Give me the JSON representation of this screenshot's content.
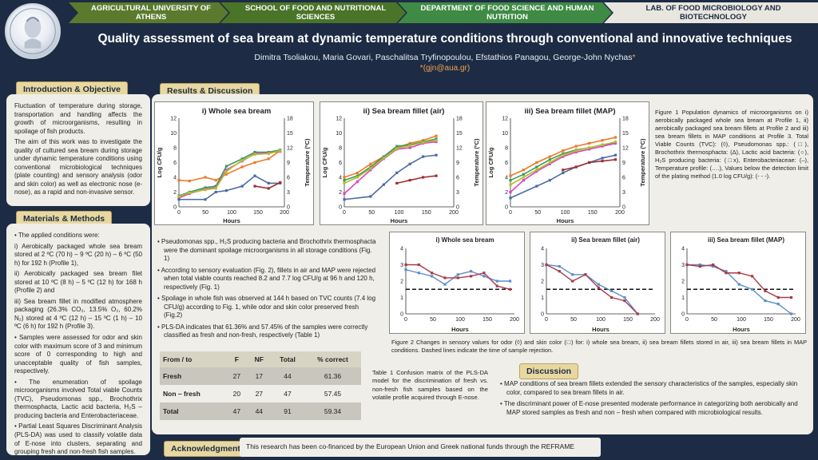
{
  "header": {
    "crumbs": [
      "AGRICULTURAL UNIVERSITY OF ATHENS",
      "SCHOOL OF FOOD AND NUTRITIONAL SCIENCES",
      "DEPARTMENT OF FOOD SCIENCE AND HUMAN NUTRITION",
      "LAB. OF FOOD MICROBIOLOGY AND BIOTECHNOLOGY"
    ],
    "title": "Quality assessment of sea bream at dynamic temperature conditions through conventional and innovative techniques",
    "authors": "Dimitra Tsoliakou, Maria Govari, Paschalitsa Tryfinopoulou, Efstathios Panagou, George-John Nychas",
    "author_mark": "*",
    "email": "*(gjn@aua.gr)"
  },
  "sections": {
    "intro": "Introduction & Objective",
    "methods": "Materials & Methods",
    "results": "Results & Discussion",
    "discussion": "Discussion",
    "ack": "Acknowledgments"
  },
  "intro": {
    "p1": "Fluctuation of temperature during storage, transportation and handling affects the growth of microorganisms, resulting in spoilage of fish products.",
    "p2": "The aim of this work was to investigate the quality of cultured sea bream during storage under dynamic temperature conditions using conventional microbiological techniques (plate counting) and sensory analysis (odor and skin color) as well as electronic nose (e-nose), as a rapid and non-invasive sensor."
  },
  "methods": {
    "p0": "• The applied conditions were:",
    "p1": "i) Aerobically packaged whole sea bream stored at 2 ºC (70 h) – 9 ºC (20 h) – 6 ºC (50 h) for 192 h (Profile 1),",
    "p2": "ii) Aerobically packaged sea bream filet stored at 10 ºC (8 h) – 5 ºC (12 h) for 168 h (Profile 2) and",
    "p3": "iii) Sea bream fillet in modified atmosphere packaging (26.3% CO₂, 13.5% O₂, 60.2% N₂) stored at 4 ºC (12 h) – 15 ºC (1 h) – 10 ºC (6 h) for 192 h (Profile 3).",
    "p4": "• Samples were assessed for odor and skin color with maximum score of 3 and minimum score of 0 corresponding to high and unacceptable quality of fish samples, respectively.",
    "p5": "• The enumeration of spoilage microorganisms involved Total viable Counts (TVC), Pseudomonas spp., Brochothrix thermosphacta, Lactic acid bacteria, H₂S – producing bacteria and Enterobacteriaceae.",
    "p6": "• Partial Least Squares Discriminant Analysis (PLS-DA) was used to classify volatile data of E-nose into clusters, separating and grouping fresh and non-fresh fish samples."
  },
  "fig1_titles": [
    "i)  Whole sea bream",
    "ii)  Sea bream fillet (air)",
    "iii)  Sea bream fillet (MAP)"
  ],
  "fig1_axes": {
    "xlabel": "Hours",
    "ylabel": "Log CFU/g",
    "y2label": "Temperature (ºC)",
    "xticks": [
      "0",
      "50",
      "100",
      "150",
      "200"
    ],
    "yticks": [
      "0",
      "2",
      "4",
      "6",
      "8",
      "10",
      "12"
    ],
    "y2ticks": [
      "0",
      "3",
      "6",
      "9",
      "12",
      "15",
      "18"
    ]
  },
  "fig1_caption": "Figure 1 Population dynamics of microorganisms on i) aerobically packaged whole sea bream at Profile 1, ii) aerobically packaged sea bream fillets at Profile 2 and iii) sea bream fillets in MAP conditions at Profile 3. Total Viable Counts (TVC): (◊), Pseudomonas spp.: (□), Brochothrix thermosphacta: (Δ), Lactic acid bacteria: (○), H₂S producing bacteria: (□x), Enterobacteriaceae: (–), Temperature profile: (….), Values below the detection limit of the plating method (1.0 log CFU/g): (- - -).",
  "fig2_titles": [
    "i)  Whole sea bream",
    "ii)  Sea bream fillet (air)",
    "iii)  Sea bream fillet (MAP)"
  ],
  "fig2_axes": {
    "xlabel": "Hours",
    "xticks": [
      "0",
      "50",
      "100",
      "150",
      "200"
    ],
    "yticks": [
      "0",
      "1",
      "2",
      "3",
      "4"
    ]
  },
  "fig2_caption": "Figure 2 Changes in sensory values for odor (◊) and skin color (□) for: i) whole sea bream, ii) sea bream fillets stored in air, iii) sea bream fillets in MAP conditions. Dashed lines indicate the time of sample rejection.",
  "results_bullets": [
    "Pseudomonas spp., H₂S producing bacteria and Brochothrix thermosphacta were the dominant spoilage microorganisms in all storage conditions (Fig. 1)",
    "According to sensory evaluation (Fig. 2), fillets in air and MAP were rejected when total viable counts reached 8.2 and 7.7 log CFU/g at 96 h and 120 h, respectively (Fig. 1)",
    "Spoilage in whole fish was observed at 144 h based on TVC counts (7.4 log CFU/g) according to Fig. 1, while odor and skin color preserved fresh (Fig.2)",
    "PLS-DA indicates that 61.36% and 57.45% of the samples were correctly classified as fresh and non-fresh, respectively (Table 1)"
  ],
  "table": {
    "headers": [
      "From / to",
      "F",
      "NF",
      "Total",
      "% correct"
    ],
    "rows": [
      [
        "Fresh",
        "27",
        "17",
        "44",
        "61.36"
      ],
      [
        "Non – fresh",
        "20",
        "27",
        "47",
        "57.45"
      ],
      [
        "Total",
        "47",
        "44",
        "91",
        "59.34"
      ]
    ]
  },
  "table_caption": "Table 1 Confusion matrix of the PLS-DA model for the discrimination of fresh vs. non-fresh fish samples based on the volatile profile acquired through E-nose.",
  "discussion_bullets": [
    "MAP conditions of sea bream fillets extended the sensory characteristics of the samples, especially skin color, compared to sea bream fillets in air.",
    "The discriminant power of E-nose presented moderate performance in categorizing both aerobically and MAP stored samples as fresh and non – fresh when compared with microbiological results."
  ],
  "ack_text": "This research has been co-financed by the European Union and Greek national funds through the REFRAME",
  "chart_data": [
    {
      "type": "line",
      "title": "i)  Whole sea bream",
      "xlabel": "Hours",
      "ylabel": "Log CFU/g",
      "y2label": "Temperature (ºC)",
      "xlim": [
        0,
        200
      ],
      "ylim": [
        0,
        12
      ],
      "y2lim": [
        0,
        18
      ],
      "series": [
        {
          "color": "#f07828",
          "x": [
            0,
            20,
            50,
            70,
            90,
            120,
            144,
            170,
            192
          ],
          "y": [
            3.6,
            3.5,
            4.0,
            3.6,
            4.4,
            5.4,
            6.0,
            6.5,
            7.6
          ]
        },
        {
          "color": "#3a9a5a",
          "x": [
            0,
            20,
            50,
            70,
            90,
            120,
            144,
            170,
            192
          ],
          "y": [
            1.5,
            2.0,
            2.6,
            2.8,
            5.5,
            6.5,
            7.4,
            7.4,
            7.7
          ]
        },
        {
          "color": "#e040c0",
          "x": [
            0,
            20,
            50,
            70,
            90,
            120,
            144,
            170,
            192
          ],
          "y": [
            1.2,
            1.8,
            2.4,
            2.6,
            5.0,
            6.2,
            7.2,
            7.3,
            7.5
          ]
        },
        {
          "color": "#b0c030",
          "x": [
            0,
            20,
            50,
            70,
            90,
            120,
            144,
            170,
            192
          ],
          "y": [
            1.4,
            1.9,
            2.3,
            2.5,
            4.8,
            6.3,
            7.1,
            7.2,
            7.6
          ]
        },
        {
          "color": "#4a6aa8",
          "x": [
            0,
            50,
            70,
            90,
            120,
            144,
            170,
            192
          ],
          "y": [
            1.0,
            1.0,
            2.0,
            2.2,
            2.8,
            4.2,
            3.2,
            3.2
          ]
        },
        {
          "color": "#a03030",
          "x": [
            144,
            170,
            192
          ],
          "y": [
            2.8,
            2.5,
            3.3
          ]
        }
      ]
    },
    {
      "type": "line",
      "title": "ii)  Sea bream fillet (air)",
      "xlabel": "Hours",
      "ylabel": "Log CFU/g",
      "y2label": "Temperature (ºC)",
      "xlim": [
        0,
        200
      ],
      "ylim": [
        0,
        12
      ],
      "y2lim": [
        0,
        18
      ],
      "series": [
        {
          "color": "#f07828",
          "x": [
            0,
            24,
            48,
            72,
            96,
            120,
            144,
            168
          ],
          "y": [
            4.0,
            4.6,
            5.8,
            6.8,
            8.0,
            8.6,
            9.0,
            9.6
          ]
        },
        {
          "color": "#3a9a5a",
          "x": [
            0,
            24,
            48,
            72,
            96,
            120,
            144,
            168
          ],
          "y": [
            3.6,
            4.2,
            5.4,
            6.8,
            8.2,
            8.4,
            8.8,
            9.2
          ]
        },
        {
          "color": "#e040c0",
          "x": [
            0,
            24,
            48,
            72,
            96,
            120,
            144,
            168
          ],
          "y": [
            1.8,
            3.4,
            5.0,
            6.5,
            7.8,
            8.0,
            8.6,
            8.8
          ]
        },
        {
          "color": "#b0c030",
          "x": [
            0,
            24,
            48,
            72,
            96,
            120,
            144,
            168
          ],
          "y": [
            3.2,
            4.0,
            5.2,
            6.6,
            7.9,
            8.3,
            8.7,
            9.0
          ]
        },
        {
          "color": "#4a6aa8",
          "x": [
            0,
            48,
            72,
            96,
            120,
            144,
            168
          ],
          "y": [
            1.0,
            1.4,
            3.0,
            4.6,
            5.8,
            6.8,
            7.0
          ]
        },
        {
          "color": "#a03030",
          "x": [
            96,
            120,
            144,
            168
          ],
          "y": [
            3.2,
            3.6,
            4.0,
            4.2
          ]
        }
      ]
    },
    {
      "type": "line",
      "title": "iii)  Sea bream fillet (MAP)",
      "xlabel": "Hours",
      "ylabel": "Log CFU/g",
      "y2label": "Temperature (ºC)",
      "xlim": [
        0,
        200
      ],
      "ylim": [
        0,
        12
      ],
      "y2lim": [
        0,
        18
      ],
      "series": [
        {
          "color": "#f07828",
          "x": [
            0,
            24,
            48,
            72,
            96,
            120,
            144,
            168,
            192
          ],
          "y": [
            4.2,
            5.0,
            6.0,
            6.8,
            7.6,
            8.2,
            8.6,
            9.0,
            9.4
          ]
        },
        {
          "color": "#3a9a5a",
          "x": [
            0,
            24,
            48,
            72,
            96,
            120,
            144,
            168,
            192
          ],
          "y": [
            3.6,
            4.4,
            5.4,
            6.4,
            7.2,
            7.7,
            8.0,
            8.4,
            8.6
          ]
        },
        {
          "color": "#e040c0",
          "x": [
            0,
            24,
            48,
            72,
            96,
            120,
            144,
            168,
            192
          ],
          "y": [
            2.0,
            3.6,
            4.8,
            5.8,
            6.8,
            7.4,
            7.8,
            8.2,
            8.6
          ]
        },
        {
          "color": "#b0c030",
          "x": [
            0,
            24,
            48,
            72,
            96,
            120,
            144,
            168,
            192
          ],
          "y": [
            3.0,
            4.0,
            5.0,
            6.0,
            7.0,
            7.6,
            8.0,
            8.4,
            8.8
          ]
        },
        {
          "color": "#4a6aa8",
          "x": [
            0,
            48,
            72,
            96,
            120,
            144,
            168,
            192
          ],
          "y": [
            1.2,
            2.8,
            3.6,
            4.6,
            5.4,
            6.0,
            6.6,
            7.0
          ]
        },
        {
          "color": "#a03030",
          "x": [
            96,
            120,
            144,
            168,
            192
          ],
          "y": [
            5.0,
            5.4,
            6.0,
            6.2,
            6.4
          ]
        }
      ]
    },
    {
      "type": "line",
      "title": "i)  Whole sea bream",
      "xlabel": "Hours",
      "xlim": [
        0,
        200
      ],
      "ylim": [
        0,
        4
      ],
      "series": [
        {
          "color": "#5a8ec8",
          "x": [
            0,
            24,
            48,
            72,
            96,
            120,
            144,
            168,
            192
          ],
          "y": [
            2.7,
            2.5,
            2.3,
            1.8,
            2.4,
            2.6,
            2.3,
            2.0,
            2.0
          ]
        },
        {
          "color": "#a83a4a",
          "x": [
            0,
            24,
            48,
            72,
            96,
            120,
            144,
            168,
            192
          ],
          "y": [
            3.0,
            3.0,
            2.5,
            2.2,
            2.2,
            2.3,
            2.5,
            1.7,
            1.5
          ]
        }
      ],
      "rejection_y": 1.5
    },
    {
      "type": "line",
      "title": "ii)  Sea bream fillet (air)",
      "xlabel": "Hours",
      "xlim": [
        0,
        200
      ],
      "ylim": [
        0,
        4
      ],
      "series": [
        {
          "color": "#5a8ec8",
          "x": [
            0,
            24,
            48,
            72,
            96,
            120,
            144,
            168
          ],
          "y": [
            3.0,
            2.9,
            2.4,
            2.4,
            1.8,
            1.4,
            1.0,
            0.0
          ]
        },
        {
          "color": "#a83a4a",
          "x": [
            0,
            24,
            48,
            72,
            96,
            120,
            144,
            168
          ],
          "y": [
            3.0,
            2.6,
            2.0,
            2.4,
            1.6,
            1.0,
            0.8,
            0.0
          ]
        }
      ],
      "rejection_y": 1.5
    },
    {
      "type": "line",
      "title": "iii)  Sea bream fillet (MAP)",
      "xlabel": "Hours",
      "xlim": [
        0,
        200
      ],
      "ylim": [
        0,
        4
      ],
      "series": [
        {
          "color": "#5a8ec8",
          "x": [
            0,
            24,
            48,
            72,
            96,
            120,
            144,
            168,
            192
          ],
          "y": [
            3.0,
            3.0,
            2.9,
            2.6,
            1.8,
            1.5,
            0.8,
            0.6,
            0.0
          ]
        },
        {
          "color": "#a83a4a",
          "x": [
            0,
            24,
            48,
            72,
            96,
            120,
            144,
            168,
            192
          ],
          "y": [
            3.0,
            2.9,
            3.0,
            2.5,
            2.5,
            2.3,
            1.4,
            1.0,
            1.0
          ]
        }
      ],
      "rejection_y": 1.5
    }
  ]
}
